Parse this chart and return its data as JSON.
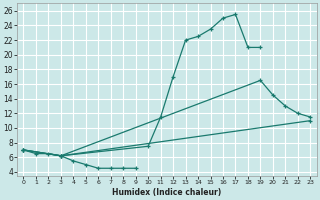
{
  "xlabel": "Humidex (Indice chaleur)",
  "bg_color": "#cce8e8",
  "grid_color": "#ffffff",
  "line_color": "#1a7a6e",
  "xlim": [
    -0.5,
    23.5
  ],
  "ylim": [
    3.5,
    27
  ],
  "xticks": [
    0,
    1,
    2,
    3,
    4,
    5,
    6,
    7,
    8,
    9,
    10,
    11,
    12,
    13,
    14,
    15,
    16,
    17,
    18,
    19,
    20,
    21,
    22,
    23
  ],
  "yticks": [
    4,
    6,
    8,
    10,
    12,
    14,
    16,
    18,
    20,
    22,
    24,
    26
  ],
  "curve1_x": [
    0,
    1,
    2,
    3,
    4,
    5,
    6,
    7,
    8,
    9
  ],
  "curve1_y": [
    7.0,
    6.5,
    6.5,
    6.2,
    5.5,
    5.0,
    4.5,
    4.5,
    4.5,
    4.5
  ],
  "curve2_x": [
    0,
    3,
    10,
    11,
    12,
    13,
    14,
    15,
    16,
    17,
    18,
    19
  ],
  "curve2_y": [
    7.0,
    6.2,
    7.5,
    11.5,
    17.0,
    22.0,
    22.5,
    23.5,
    25.0,
    25.5,
    21.0,
    21.0
  ],
  "curve3_x": [
    0,
    3,
    19,
    20,
    21,
    22,
    23
  ],
  "curve3_y": [
    7.0,
    6.2,
    16.5,
    14.5,
    13.0,
    12.0,
    11.5
  ],
  "curve4_x": [
    0,
    3,
    23
  ],
  "curve4_y": [
    7.0,
    6.2,
    11.0
  ],
  "xlabel_fontsize": 5.5,
  "tick_fontsize_x": 4.5,
  "tick_fontsize_y": 5.5
}
